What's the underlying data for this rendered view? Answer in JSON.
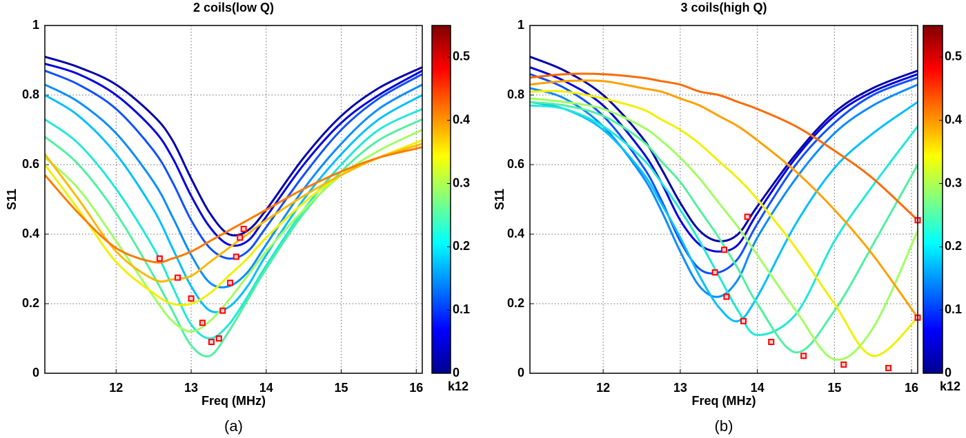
{
  "chart_data": [
    {
      "type": "line",
      "title": "2 coils(low Q)",
      "xlabel": "Freq (MHz)",
      "ylabel": "S11",
      "caption": "(a)",
      "xlim": [
        11.05,
        16.08
      ],
      "ylim": [
        0,
        1
      ],
      "xticks": [
        12,
        13,
        14,
        15,
        16
      ],
      "yticks": [
        0,
        0.2,
        0.4,
        0.6,
        0.8,
        1
      ],
      "grid": true,
      "x": [
        11.05,
        11.5,
        12,
        12.5,
        12.75,
        13,
        13.25,
        13.5,
        13.75,
        14,
        14.5,
        15,
        15.5,
        16.08
      ],
      "series": [
        {
          "color": "#0000a8",
          "values": [
            0.91,
            0.88,
            0.83,
            0.74,
            0.67,
            0.56,
            0.46,
            0.4,
            0.41,
            0.47,
            0.62,
            0.74,
            0.82,
            0.88
          ]
        },
        {
          "color": "#0000e0",
          "values": [
            0.89,
            0.86,
            0.8,
            0.7,
            0.62,
            0.51,
            0.42,
            0.37,
            0.38,
            0.45,
            0.6,
            0.72,
            0.8,
            0.87
          ]
        },
        {
          "color": "#1050ff",
          "values": [
            0.87,
            0.83,
            0.76,
            0.64,
            0.55,
            0.44,
            0.36,
            0.33,
            0.35,
            0.42,
            0.57,
            0.7,
            0.79,
            0.86
          ]
        },
        {
          "color": "#0a8cff",
          "values": [
            0.83,
            0.78,
            0.69,
            0.55,
            0.45,
            0.34,
            0.26,
            0.25,
            0.29,
            0.37,
            0.53,
            0.66,
            0.76,
            0.83
          ]
        },
        {
          "color": "#00bfff",
          "values": [
            0.8,
            0.74,
            0.63,
            0.47,
            0.36,
            0.25,
            0.18,
            0.19,
            0.25,
            0.34,
            0.5,
            0.63,
            0.73,
            0.8
          ]
        },
        {
          "color": "#20e8d8",
          "values": [
            0.73,
            0.66,
            0.53,
            0.36,
            0.25,
            0.14,
            0.1,
            0.14,
            0.22,
            0.31,
            0.47,
            0.6,
            0.7,
            0.76
          ]
        },
        {
          "color": "#50f0a0",
          "values": [
            0.68,
            0.6,
            0.46,
            0.28,
            0.18,
            0.08,
            0.05,
            0.12,
            0.21,
            0.3,
            0.46,
            0.58,
            0.67,
            0.73
          ]
        },
        {
          "color": "#a0ff60",
          "values": [
            0.62,
            0.53,
            0.38,
            0.22,
            0.15,
            0.12,
            0.15,
            0.21,
            0.28,
            0.35,
            0.47,
            0.57,
            0.64,
            0.7
          ]
        },
        {
          "color": "#f0f000",
          "values": [
            0.6,
            0.47,
            0.32,
            0.23,
            0.2,
            0.2,
            0.23,
            0.28,
            0.33,
            0.39,
            0.49,
            0.57,
            0.62,
            0.67
          ]
        },
        {
          "color": "#ffb800",
          "values": [
            0.63,
            0.5,
            0.35,
            0.27,
            0.27,
            0.28,
            0.32,
            0.36,
            0.4,
            0.44,
            0.51,
            0.57,
            0.62,
            0.66
          ]
        },
        {
          "color": "#ff7a00",
          "values": [
            0.57,
            0.46,
            0.36,
            0.32,
            0.33,
            0.35,
            0.38,
            0.41,
            0.44,
            0.47,
            0.53,
            0.58,
            0.62,
            0.65
          ]
        },
        {
          "color": "#ff0000",
          "marker": "square",
          "line": false,
          "x": [
            12.58,
            12.82,
            13.0,
            13.15,
            13.27,
            13.37,
            13.42,
            13.52,
            13.6,
            13.65,
            13.7
          ],
          "values": [
            0.33,
            0.275,
            0.215,
            0.145,
            0.09,
            0.1,
            0.18,
            0.26,
            0.335,
            0.39,
            0.415
          ]
        }
      ],
      "colorbar": {
        "label": "k12",
        "colormap": "jet",
        "lim": [
          0,
          0.55
        ],
        "ticks": [
          0,
          0.1,
          0.2,
          0.3,
          0.4,
          0.5
        ]
      }
    },
    {
      "type": "line",
      "title": "3 coils(high Q)",
      "xlabel": "Freq (MHz)",
      "ylabel": "S11",
      "caption": "(b)",
      "xlim": [
        11.05,
        16.08
      ],
      "ylim": [
        0,
        1
      ],
      "xticks": [
        12,
        13,
        14,
        15,
        16
      ],
      "yticks": [
        0,
        0.2,
        0.4,
        0.6,
        0.8,
        1
      ],
      "grid": true,
      "x": [
        11.05,
        11.5,
        12,
        12.5,
        12.75,
        13,
        13.25,
        13.5,
        13.75,
        14,
        14.5,
        15,
        15.5,
        16.08
      ],
      "series": [
        {
          "color": "#0000a8",
          "values": [
            0.91,
            0.87,
            0.8,
            0.68,
            0.59,
            0.49,
            0.41,
            0.38,
            0.4,
            0.48,
            0.63,
            0.75,
            0.82,
            0.87
          ]
        },
        {
          "color": "#0000e0",
          "values": [
            0.88,
            0.84,
            0.77,
            0.64,
            0.55,
            0.44,
            0.37,
            0.35,
            0.37,
            0.46,
            0.62,
            0.74,
            0.81,
            0.86
          ]
        },
        {
          "color": "#1050ff",
          "values": [
            0.86,
            0.82,
            0.74,
            0.6,
            0.5,
            0.38,
            0.3,
            0.29,
            0.33,
            0.43,
            0.6,
            0.72,
            0.8,
            0.85
          ]
        },
        {
          "color": "#0a8cff",
          "values": [
            0.82,
            0.79,
            0.71,
            0.57,
            0.47,
            0.35,
            0.25,
            0.22,
            0.27,
            0.39,
            0.56,
            0.69,
            0.77,
            0.83
          ]
        },
        {
          "color": "#00bfff",
          "values": [
            0.78,
            0.76,
            0.7,
            0.58,
            0.49,
            0.39,
            0.28,
            0.19,
            0.15,
            0.22,
            0.43,
            0.59,
            0.69,
            0.78
          ]
        },
        {
          "color": "#20e8d8",
          "values": [
            0.77,
            0.76,
            0.71,
            0.62,
            0.55,
            0.47,
            0.38,
            0.28,
            0.18,
            0.11,
            0.17,
            0.38,
            0.54,
            0.71
          ]
        },
        {
          "color": "#50f0a0",
          "values": [
            0.78,
            0.77,
            0.74,
            0.67,
            0.61,
            0.55,
            0.47,
            0.39,
            0.3,
            0.2,
            0.06,
            0.18,
            0.37,
            0.6
          ]
        },
        {
          "color": "#a0ff60",
          "values": [
            0.79,
            0.78,
            0.76,
            0.71,
            0.67,
            0.62,
            0.56,
            0.49,
            0.42,
            0.34,
            0.18,
            0.04,
            0.13,
            0.41
          ]
        },
        {
          "color": "#f0f000",
          "values": [
            0.81,
            0.81,
            0.79,
            0.76,
            0.73,
            0.7,
            0.66,
            0.61,
            0.56,
            0.5,
            0.36,
            0.2,
            0.05,
            0.16
          ]
        },
        {
          "color": "#ffa000",
          "values": [
            0.83,
            0.84,
            0.84,
            0.82,
            0.81,
            0.79,
            0.77,
            0.74,
            0.71,
            0.67,
            0.58,
            0.47,
            0.34,
            0.16
          ]
        },
        {
          "color": "#ff6a00",
          "values": [
            0.85,
            0.86,
            0.86,
            0.85,
            0.84,
            0.83,
            0.81,
            0.8,
            0.78,
            0.76,
            0.71,
            0.64,
            0.56,
            0.44
          ]
        },
        {
          "color": "#ff0000",
          "marker": "square",
          "line": false,
          "x": [
            13.45,
            13.57,
            13.87,
            13.6,
            13.82,
            14.18,
            14.6,
            15.12,
            15.7,
            16.08,
            16.08
          ],
          "values": [
            0.29,
            0.355,
            0.45,
            0.22,
            0.15,
            0.09,
            0.05,
            0.025,
            0.015,
            0.16,
            0.44
          ]
        }
      ],
      "colorbar": {
        "label": "k12",
        "colormap": "jet",
        "lim": [
          0,
          0.55
        ],
        "ticks": [
          0,
          0.1,
          0.2,
          0.3,
          0.4,
          0.5
        ]
      }
    }
  ]
}
